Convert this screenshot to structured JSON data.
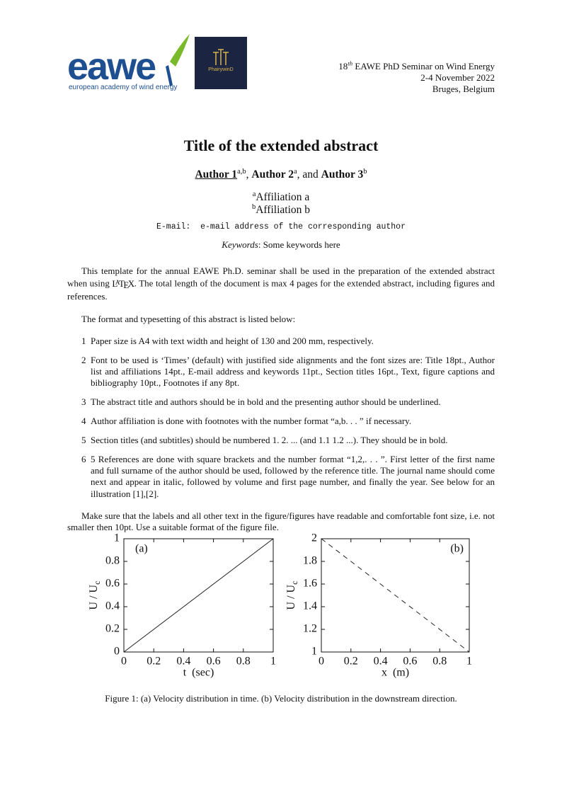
{
  "header": {
    "logo_text": "eawe",
    "logo_tagline": "european academy of wind energy",
    "partner_logo": "PhairywinD",
    "seminar_number": "18",
    "seminar_number_sup": "th",
    "seminar_name": " EAWE PhD Seminar on Wind Energy",
    "dates": "2-4 November 2022",
    "location": "Bruges, Belgium"
  },
  "title": "Title of the extended abstract",
  "authors": [
    {
      "name": "Author 1",
      "sup": "a,b",
      "sep": ", "
    },
    {
      "name": "Author 2",
      "sup": "a",
      "sep": ", and "
    },
    {
      "name": "Author 3",
      "sup": "b"
    }
  ],
  "affiliations": [
    {
      "sup": "a",
      "text": "Affiliation a"
    },
    {
      "sup": "b",
      "text": "Affiliation b"
    }
  ],
  "email": {
    "label": "E-mail:",
    "text": "e-mail address of the corresponding author"
  },
  "keywords": {
    "label": "Keywords",
    "text": ": Some keywords here"
  },
  "intro": {
    "before": "This template for the annual EAWE Ph.D. seminar shall be used in the preparation of the extended abstract when using ",
    "latex": [
      "L",
      "A",
      "T",
      "E",
      "X"
    ],
    "after": ". The total length of the document is max 4 pages for the extended abstract, including figures and references."
  },
  "format_intro": "The format and typesetting of this abstract is listed below:",
  "list": [
    {
      "number": "1",
      "text": "Paper size is A4 with text width and height of 130 and 200 mm, respectively."
    },
    {
      "number": "2",
      "text": "Font to be used is ‘Times’ (default) with justified side alignments and the font sizes are: Title 18pt., Author list and affiliations 14pt., E-mail address and keywords 11pt., Section titles 16pt., Text, figure captions and bibliography 10pt., Footnotes if any 8pt."
    },
    {
      "number": "3",
      "text": "The abstract title and authors should be in bold and the presenting author should be underlined."
    },
    {
      "number": "4",
      "text": "Author affiliation is done with footnotes with the number format “a,b. . . ” if necessary."
    },
    {
      "number": "5",
      "text": "Section titles (and subtitles) should be numbered 1. 2. ... (and 1.1 1.2 ...). They should be in bold."
    },
    {
      "number": "6",
      "text": "5 References are done with square brackets and the number format “1,2,. . . ”. First letter of the first name and full surname of the author should be used, followed by the reference title. The journal name should come next and appear in italic, followed by volume and first page number, and finally the year. See below for an illustration [1],[2]."
    }
  ],
  "closing": "Make sure that the labels and all other text in the figure/figures have readable and comfortable font size, i.e. not smaller then 10pt. Use a suitable format of the figure file.",
  "figure": {
    "caption": "Figure 1: (a) Velocity distribution in time. (b) Velocity distribution in the downstream direction."
  },
  "chart_data": [
    {
      "type": "line",
      "annotation": "(a)",
      "xlabel": "t  (sec)",
      "ylabel": "U / U",
      "ylabel_sub": "c",
      "x": [
        0,
        1
      ],
      "series": [
        {
          "color": "#222222",
          "line_style": "solid",
          "values": [
            0,
            1
          ]
        }
      ],
      "xlim": [
        0,
        1
      ],
      "xticks": [
        0,
        0.2,
        0.4,
        0.6,
        0.8,
        1
      ],
      "ylim": [
        0,
        1
      ],
      "yticks": [
        0,
        0.2,
        0.4,
        0.6,
        0.8,
        1
      ]
    },
    {
      "type": "line",
      "annotation": "(b)",
      "xlabel": "x  (m)",
      "ylabel": "U / U",
      "ylabel_sub": "c",
      "x": [
        0,
        1
      ],
      "series": [
        {
          "color": "#222222",
          "line_style": "dashed",
          "values": [
            2,
            1
          ]
        }
      ],
      "xlim": [
        0,
        1
      ],
      "xticks": [
        0,
        0.2,
        0.4,
        0.6,
        0.8,
        1
      ],
      "ylim": [
        1,
        2
      ],
      "yticks": [
        1,
        1.2,
        1.4,
        1.6,
        1.8,
        2
      ]
    }
  ]
}
